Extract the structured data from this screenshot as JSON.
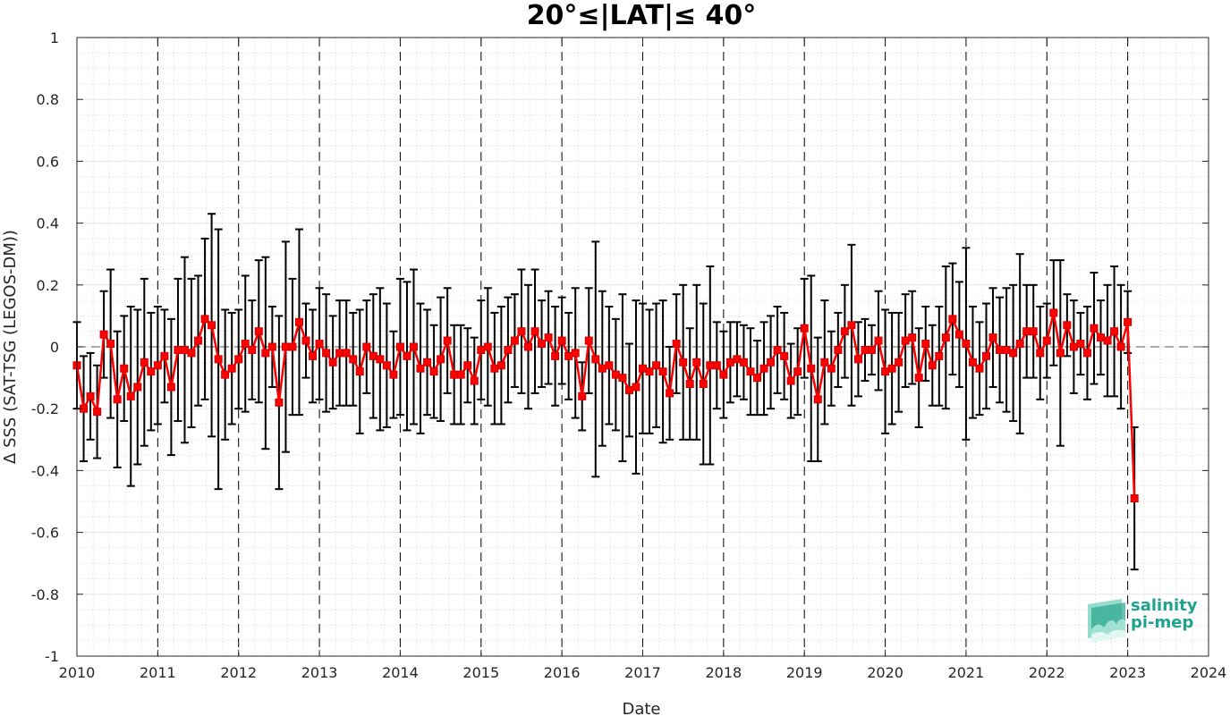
{
  "chart_data": {
    "type": "line",
    "title": "20°≤|LAT|≤ 40°",
    "xlabel": "Date",
    "ylabel": "Δ SSS (SAT-TSG (LEGOS-DM))",
    "xlim": [
      2010,
      2024
    ],
    "ylim": [
      -1,
      1
    ],
    "x_ticks": [
      "2010",
      "2011",
      "2012",
      "2013",
      "2014",
      "2015",
      "2016",
      "2017",
      "2018",
      "2019",
      "2020",
      "2021",
      "2022",
      "2023",
      "2024"
    ],
    "y_ticks": [
      "1",
      "0.8",
      "0.6",
      "0.4",
      "0.2",
      "0",
      "-0.2",
      "-0.4",
      "-0.6",
      "-0.8",
      "-1"
    ],
    "x_start": "2010-01",
    "x_step": "1 month",
    "grid": true,
    "legend": "none",
    "zero_line": true,
    "annual_dashed_lines": true,
    "line_color": "#ff0000",
    "marker": "square",
    "errorbar_color": "#000000",
    "series": [
      {
        "values": [
          -0.06,
          -0.2,
          -0.16,
          -0.21,
          0.04,
          0.01,
          -0.17,
          -0.07,
          -0.16,
          -0.13,
          -0.05,
          -0.08,
          -0.06,
          -0.03,
          -0.13,
          -0.01,
          -0.01,
          -0.02,
          0.02,
          0.09,
          0.07,
          -0.04,
          -0.09,
          -0.07,
          -0.04,
          0.01,
          -0.01,
          0.05,
          -0.02,
          0.0,
          -0.18,
          0.0,
          0.0,
          0.08,
          0.02,
          -0.03,
          0.01,
          -0.02,
          -0.05,
          -0.02,
          -0.02,
          -0.04,
          -0.08,
          0.0,
          -0.03,
          -0.04,
          -0.06,
          -0.09,
          0.0,
          -0.03,
          0.0,
          -0.07,
          -0.05,
          -0.08,
          -0.04,
          0.02,
          -0.09,
          -0.09,
          -0.06,
          -0.11,
          -0.01,
          0.0,
          -0.07,
          -0.06,
          -0.01,
          0.02,
          0.05,
          0.0,
          0.05,
          0.01,
          0.03,
          -0.03,
          0.02,
          -0.03,
          -0.02,
          -0.16,
          0.02,
          -0.04,
          -0.07,
          -0.06,
          -0.09,
          -0.1,
          -0.14,
          -0.13,
          -0.07,
          -0.08,
          -0.06,
          -0.08,
          -0.15,
          0.01,
          -0.05,
          -0.12,
          -0.05,
          -0.12,
          -0.06,
          -0.06,
          -0.09,
          -0.05,
          -0.04,
          -0.05,
          -0.08,
          -0.1,
          -0.07,
          -0.05,
          -0.01,
          -0.03,
          -0.11,
          -0.08,
          0.06,
          -0.07,
          -0.17,
          -0.05,
          -0.07,
          -0.01,
          0.05,
          0.07,
          -0.04,
          -0.01,
          -0.01,
          0.02,
          -0.08,
          -0.07,
          -0.05,
          0.02,
          0.03,
          -0.1,
          0.01,
          -0.06,
          -0.03,
          0.03,
          0.09,
          0.04,
          0.01,
          -0.05,
          -0.07,
          -0.03,
          0.03,
          -0.01,
          -0.01,
          -0.02,
          0.01,
          0.05,
          0.05,
          -0.02,
          0.02,
          0.11,
          -0.02,
          0.07,
          0.0,
          0.01,
          -0.02,
          0.06,
          0.03,
          0.02,
          0.05,
          0.0,
          0.08,
          -0.49
        ],
        "error": [
          0.14,
          0.17,
          0.14,
          0.15,
          0.14,
          0.24,
          0.22,
          0.17,
          0.29,
          0.25,
          0.27,
          0.19,
          0.19,
          0.15,
          0.22,
          0.23,
          0.3,
          0.24,
          0.21,
          0.26,
          0.36,
          0.42,
          0.21,
          0.18,
          0.16,
          0.22,
          0.16,
          0.23,
          0.31,
          0.13,
          0.28,
          0.34,
          0.22,
          0.3,
          0.12,
          0.15,
          0.18,
          0.19,
          0.15,
          0.17,
          0.17,
          0.15,
          0.2,
          0.15,
          0.2,
          0.23,
          0.2,
          0.14,
          0.22,
          0.24,
          0.25,
          0.21,
          0.17,
          0.15,
          0.2,
          0.17,
          0.16,
          0.16,
          0.12,
          0.14,
          0.16,
          0.19,
          0.18,
          0.19,
          0.17,
          0.15,
          0.2,
          0.2,
          0.2,
          0.14,
          0.15,
          0.16,
          0.14,
          0.14,
          0.21,
          0.11,
          0.17,
          0.38,
          0.25,
          0.19,
          0.18,
          0.27,
          0.15,
          0.28,
          0.21,
          0.2,
          0.2,
          0.23,
          0.15,
          0.16,
          0.25,
          0.18,
          0.25,
          0.26,
          0.32,
          0.14,
          0.14,
          0.13,
          0.12,
          0.12,
          0.14,
          0.12,
          0.15,
          0.15,
          0.14,
          0.14,
          0.12,
          0.14,
          0.16,
          0.3,
          0.2,
          0.2,
          0.12,
          0.12,
          0.15,
          0.26,
          0.12,
          0.1,
          0.08,
          0.16,
          0.2,
          0.18,
          0.16,
          0.15,
          0.15,
          0.16,
          0.12,
          0.13,
          0.16,
          0.23,
          0.18,
          0.17,
          0.31,
          0.18,
          0.15,
          0.17,
          0.16,
          0.17,
          0.2,
          0.22,
          0.29,
          0.15,
          0.15,
          0.15,
          0.12,
          0.17,
          0.3,
          0.1,
          0.15,
          0.1,
          0.15,
          0.18,
          0.12,
          0.18,
          0.21,
          0.2,
          0.1,
          0.23
        ]
      }
    ]
  },
  "logo": {
    "line1": "salinity",
    "line2": "pi-mep"
  }
}
